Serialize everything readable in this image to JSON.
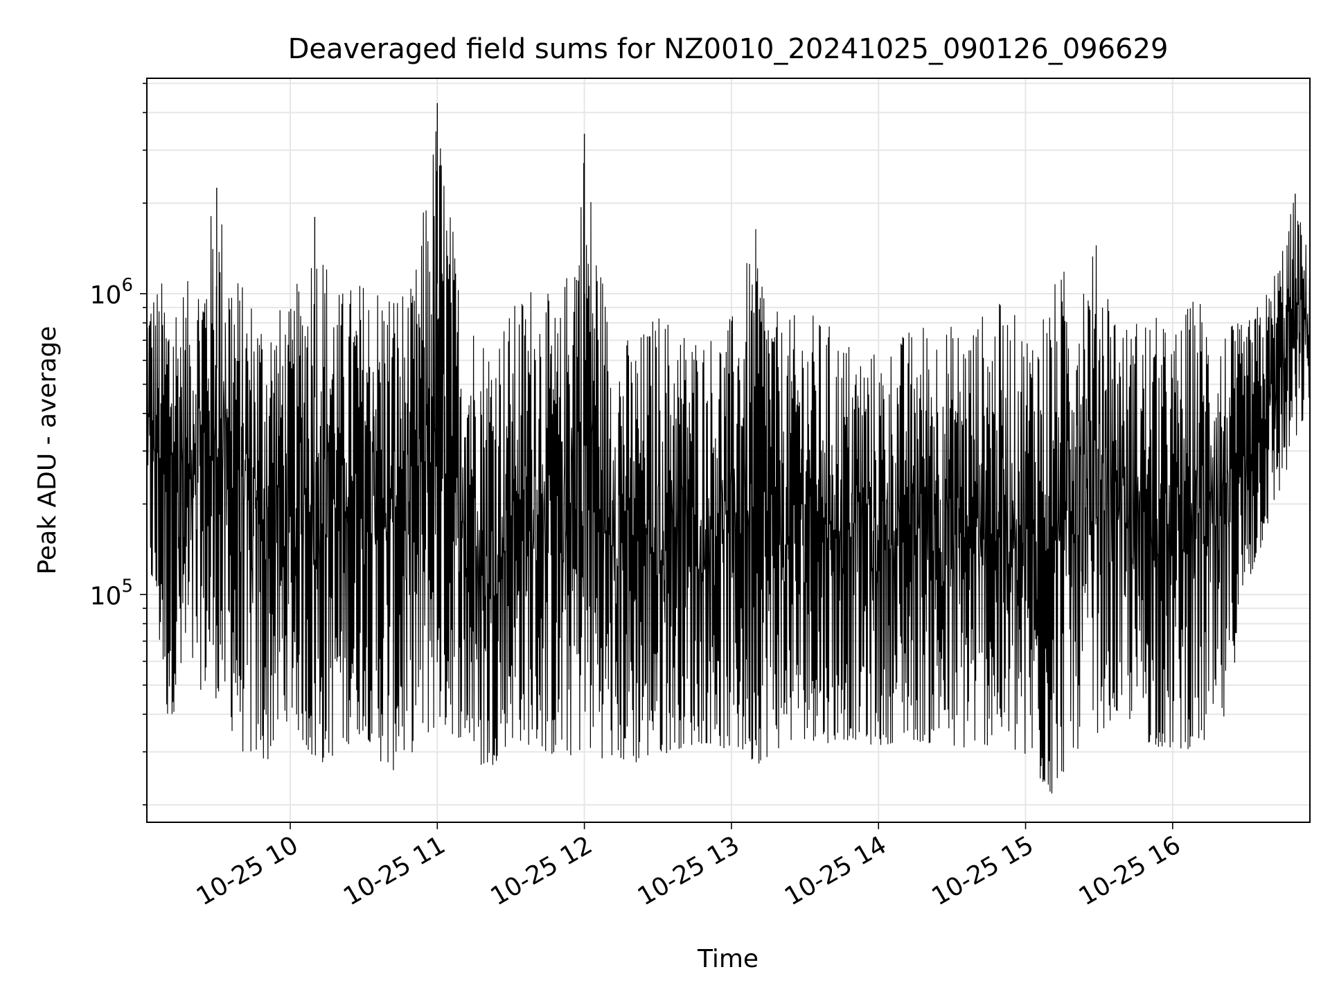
{
  "chart_data": {
    "type": "line",
    "title": "Deaveraged field sums for NZ0010_20241025_090126_096629",
    "xlabel": "Time",
    "ylabel": "Peak ADU - average",
    "yscale": "log",
    "ylim": [
      17500,
      5200000
    ],
    "xlim": [
      "2024-10-25 09:01:30",
      "2024-10-25 16:56:00"
    ],
    "grid": true,
    "legend": "none",
    "x_tick_labels": [
      "10-25 10",
      "10-25 11",
      "10-25 12",
      "10-25 13",
      "10-25 14",
      "10-25 15",
      "10-25 16"
    ],
    "x_tick_times": [
      "2024-10-25 10:00",
      "2024-10-25 11:00",
      "2024-10-25 12:00",
      "2024-10-25 13:00",
      "2024-10-25 14:00",
      "2024-10-25 15:00",
      "2024-10-25 16:00"
    ],
    "y_tick_bases": [
      "10",
      "10"
    ],
    "y_tick_exponents": [
      "5",
      "6"
    ],
    "y_tick_values": [
      100000,
      1000000
    ],
    "series": [
      {
        "color": "#000000",
        "x": [
          "2024-10-25 09:01",
          "2024-10-25 09:10",
          "2024-10-25 09:20",
          "2024-10-25 09:30",
          "2024-10-25 09:40",
          "2024-10-25 09:50",
          "2024-10-25 10:00",
          "2024-10-25 10:10",
          "2024-10-25 10:20",
          "2024-10-25 10:30",
          "2024-10-25 10:40",
          "2024-10-25 10:50",
          "2024-10-25 11:00",
          "2024-10-25 11:10",
          "2024-10-25 11:20",
          "2024-10-25 11:30",
          "2024-10-25 11:40",
          "2024-10-25 11:50",
          "2024-10-25 12:00",
          "2024-10-25 12:10",
          "2024-10-25 12:20",
          "2024-10-25 12:30",
          "2024-10-25 12:40",
          "2024-10-25 12:50",
          "2024-10-25 13:00",
          "2024-10-25 13:10",
          "2024-10-25 13:20",
          "2024-10-25 13:30",
          "2024-10-25 13:40",
          "2024-10-25 13:50",
          "2024-10-25 14:00",
          "2024-10-25 14:10",
          "2024-10-25 14:20",
          "2024-10-25 14:30",
          "2024-10-25 14:40",
          "2024-10-25 14:50",
          "2024-10-25 15:00",
          "2024-10-25 15:10",
          "2024-10-25 15:20",
          "2024-10-25 15:30",
          "2024-10-25 15:40",
          "2024-10-25 15:50",
          "2024-10-25 16:00",
          "2024-10-25 16:10",
          "2024-10-25 16:20",
          "2024-10-25 16:30",
          "2024-10-25 16:40",
          "2024-10-25 16:50",
          "2024-10-25 16:56"
        ],
        "upper": [
          1050000,
          1150000,
          1100000,
          2250000,
          1100000,
          950000,
          900000,
          1800000,
          1050000,
          1150000,
          1150000,
          1050000,
          4300000,
          1000000,
          750000,
          900000,
          1200000,
          850000,
          3400000,
          850000,
          700000,
          900000,
          800000,
          750000,
          850000,
          1650000,
          800000,
          900000,
          800000,
          700000,
          650000,
          750000,
          850000,
          800000,
          850000,
          950000,
          800000,
          1050000,
          1400000,
          1500000,
          800000,
          900000,
          750000,
          1050000,
          800000,
          800000,
          1100000,
          2150000,
          1300000
        ],
        "lower": [
          150000,
          38000,
          50000,
          45000,
          30000,
          27000,
          40000,
          26000,
          30000,
          35000,
          25000,
          30000,
          36000,
          33000,
          25000,
          33000,
          31000,
          28000,
          30000,
          28000,
          27000,
          29000,
          31000,
          32000,
          30000,
          27000,
          31000,
          33000,
          32000,
          33000,
          31000,
          33000,
          32000,
          30000,
          31000,
          32000,
          27000,
          21000,
          30000,
          35000,
          40000,
          32000,
          30000,
          31000,
          33000,
          100000,
          180000,
          300000,
          450000
        ]
      }
    ]
  }
}
